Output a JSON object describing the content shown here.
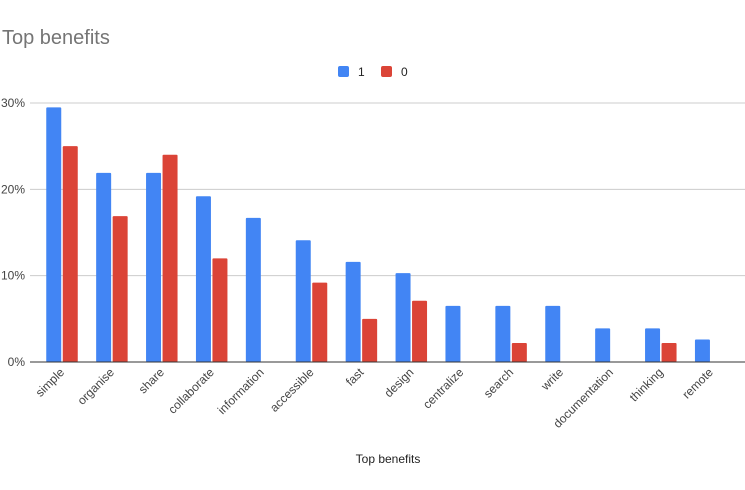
{
  "chart_data": {
    "type": "bar",
    "title": "Top benefits",
    "xlabel": "Top benefits",
    "ylabel": "",
    "categories": [
      "simple",
      "organise",
      "share",
      "collaborate",
      "information",
      "accessible",
      "fast",
      "design",
      "centralize",
      "search",
      "write",
      "documentation",
      "thinking",
      "remote"
    ],
    "series": [
      {
        "name": "1",
        "color": "#4285f4",
        "values": [
          29.5,
          21.9,
          21.9,
          19.2,
          16.7,
          14.1,
          11.6,
          10.3,
          6.5,
          6.5,
          6.5,
          3.9,
          3.9,
          2.6
        ]
      },
      {
        "name": "0",
        "color": "#db4437",
        "values": [
          25.0,
          16.9,
          24.0,
          12.0,
          0,
          9.2,
          5.0,
          7.1,
          0,
          2.2,
          0,
          0,
          2.2,
          0
        ]
      }
    ],
    "ylim": [
      0,
      30
    ],
    "yticks": [
      "0%",
      "10%",
      "20%",
      "30%"
    ],
    "ytick_values": [
      0,
      10,
      20,
      30
    ],
    "legend_position": "top-center",
    "grid": true
  }
}
